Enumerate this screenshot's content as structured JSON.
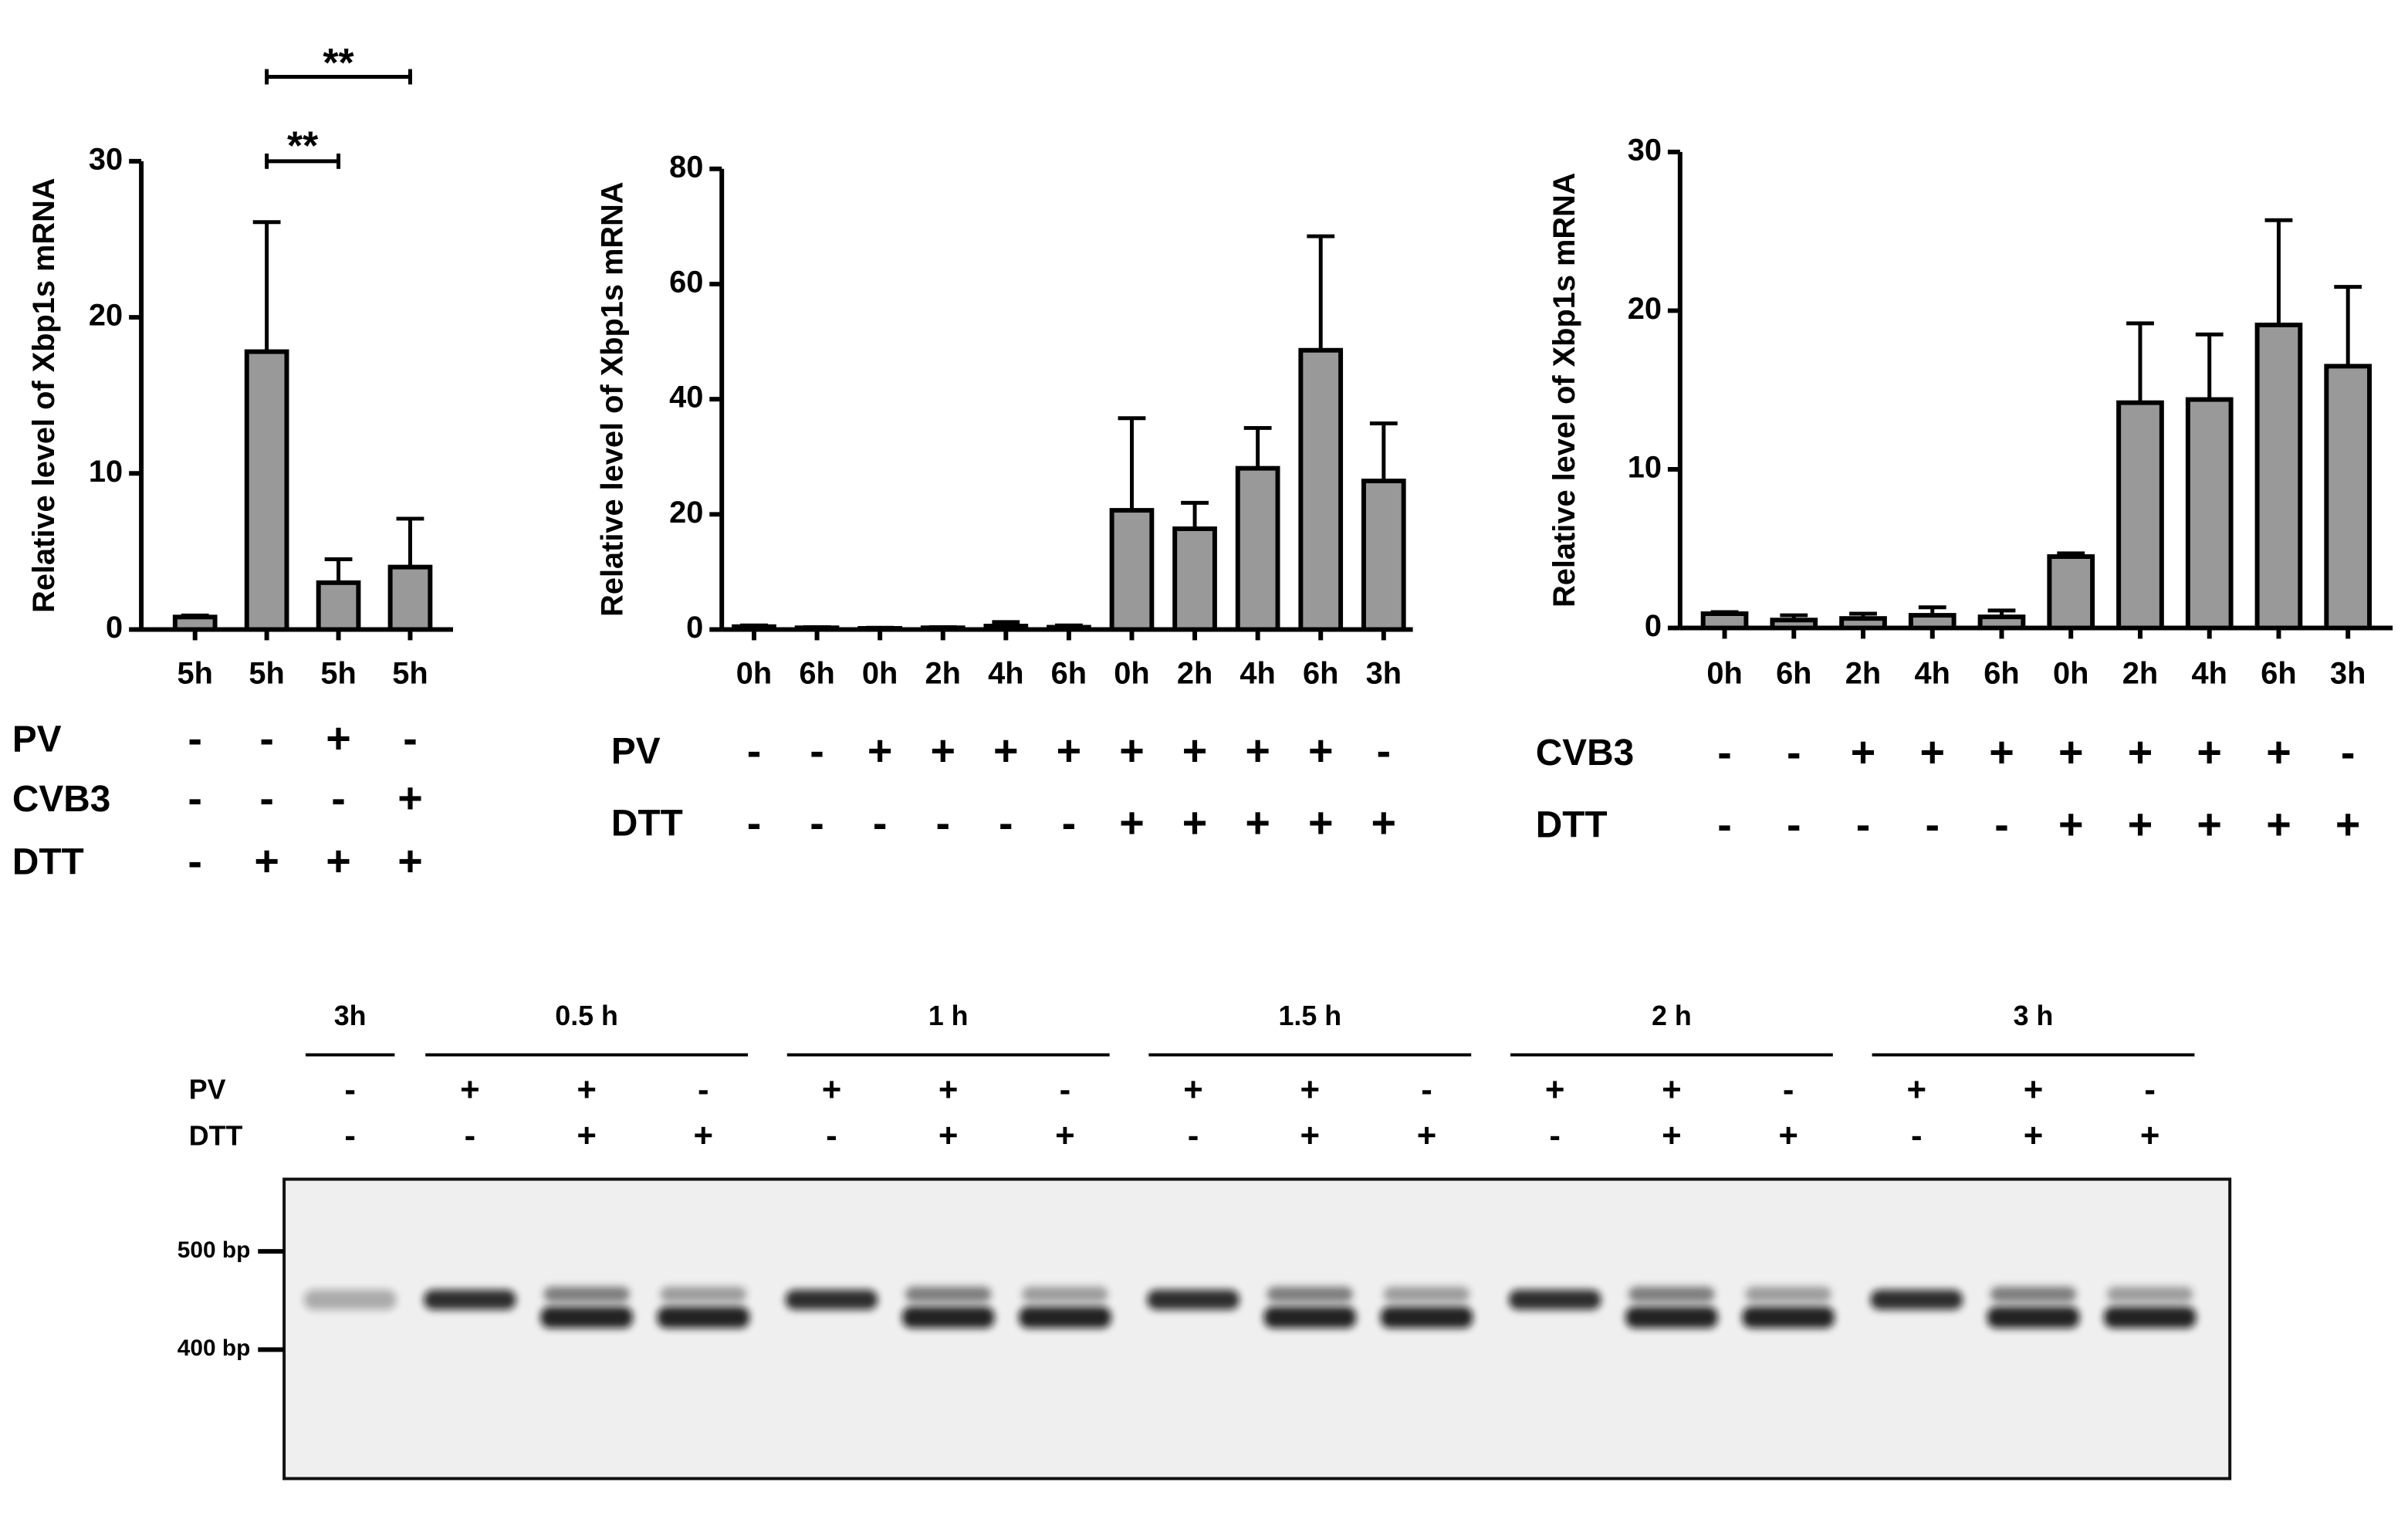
{
  "chart_data": [
    {
      "type": "bar",
      "y_label": "Relative level of Xbp1s mRNA",
      "categories": [
        "5h",
        "5h",
        "5h",
        "5h"
      ],
      "series": [
        {
          "name": "Xbp1s",
          "color": "#999999",
          "values": [
            0.8,
            17.8,
            3.0,
            4.0
          ],
          "errors": [
            0.1,
            8.3,
            1.5,
            3.1
          ]
        }
      ],
      "ylim": [
        0,
        30
      ],
      "yticks": [
        0,
        10,
        20,
        30
      ],
      "conditions": [
        {
          "label": "PV",
          "values": [
            "-",
            "-",
            "+",
            "-"
          ]
        },
        {
          "label": "CVB3",
          "values": [
            "-",
            "-",
            "-",
            "+"
          ]
        },
        {
          "label": "DTT",
          "values": [
            "-",
            "+",
            "+",
            "+"
          ]
        }
      ],
      "significance": [
        {
          "text": "**",
          "pair": [
            1,
            2
          ]
        },
        {
          "text": "**",
          "pair": [
            1,
            3
          ]
        }
      ]
    },
    {
      "type": "bar",
      "y_label": "Relative level of Xbp1s mRNA",
      "categories": [
        "0h",
        "6h",
        "0h",
        "2h",
        "4h",
        "6h",
        "0h",
        "2h",
        "4h",
        "6h",
        "3h"
      ],
      "series": [
        {
          "name": "Xbp1s",
          "color": "#999999",
          "values": [
            0.5,
            0.3,
            0.2,
            0.3,
            0.6,
            0.4,
            20.7,
            17.5,
            28,
            48.5,
            25.8
          ],
          "errors": [
            0.2,
            0.1,
            0.1,
            0.1,
            0.7,
            0.3,
            16,
            4.5,
            7,
            19.8,
            10
          ]
        }
      ],
      "ylim": [
        0,
        80
      ],
      "yticks": [
        0,
        20,
        40,
        60,
        80
      ],
      "conditions": [
        {
          "label": "PV",
          "values": [
            "-",
            "-",
            "+",
            "+",
            "+",
            "+",
            "+",
            "+",
            "+",
            "+",
            "-"
          ]
        },
        {
          "label": "DTT",
          "values": [
            "-",
            "-",
            "-",
            "-",
            "-",
            "-",
            "+",
            "+",
            "+",
            "+",
            "+"
          ]
        }
      ]
    },
    {
      "type": "bar",
      "y_label": "Relative level of Xbp1s mRNA",
      "categories": [
        "0h",
        "6h",
        "2h",
        "4h",
        "6h",
        "0h",
        "2h",
        "4h",
        "6h",
        "3h"
      ],
      "series": [
        {
          "name": "Xbp1s",
          "color": "#999999",
          "values": [
            0.9,
            0.5,
            0.6,
            0.8,
            0.7,
            4.5,
            14.2,
            14.4,
            19.1,
            16.5
          ],
          "errors": [
            0.1,
            0.3,
            0.3,
            0.5,
            0.4,
            0.2,
            5,
            4.1,
            6.6,
            5
          ]
        }
      ],
      "ylim": [
        0,
        30
      ],
      "yticks": [
        0,
        10,
        20,
        30
      ],
      "conditions": [
        {
          "label": "CVB3",
          "values": [
            "-",
            "-",
            "+",
            "+",
            "+",
            "+",
            "+",
            "+",
            "+",
            "-"
          ]
        },
        {
          "label": "DTT",
          "values": [
            "-",
            "-",
            "-",
            "-",
            "-",
            "+",
            "+",
            "+",
            "+",
            "+"
          ]
        }
      ]
    }
  ],
  "gel": {
    "row_labels": [
      "PV",
      "DTT"
    ],
    "groups": [
      {
        "label": "3h",
        "pv": [
          "-"
        ],
        "dtt": [
          "-"
        ]
      },
      {
        "label": "0.5 h",
        "pv": [
          "+",
          "+",
          "-"
        ],
        "dtt": [
          "-",
          "+",
          "+"
        ]
      },
      {
        "label": "1 h",
        "pv": [
          "+",
          "+",
          "-"
        ],
        "dtt": [
          "-",
          "+",
          "+"
        ]
      },
      {
        "label": "1.5 h",
        "pv": [
          "+",
          "+",
          "-"
        ],
        "dtt": [
          "-",
          "+",
          "+"
        ]
      },
      {
        "label": "2 h",
        "pv": [
          "+",
          "+",
          "-"
        ],
        "dtt": [
          "-",
          "+",
          "+"
        ]
      },
      {
        "label": "3 h",
        "pv": [
          "+",
          "+",
          "-"
        ],
        "dtt": [
          "-",
          "+",
          "+"
        ]
      }
    ],
    "markers": [
      "500 bp",
      "400 bp"
    ]
  }
}
